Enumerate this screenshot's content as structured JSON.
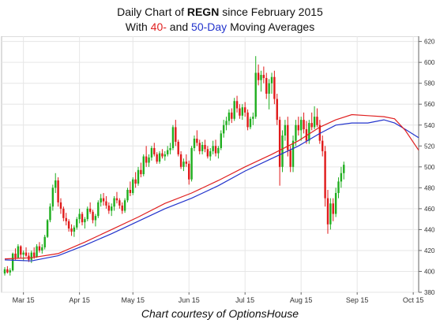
{
  "title": {
    "line1_prefix": "Daily Chart of ",
    "ticker": "REGN",
    "line1_suffix": " since February 2015",
    "line2_prefix": "With ",
    "ma40_label": "40-",
    "line2_mid": " and ",
    "ma50_label": "50-Day",
    "line2_suffix": " Moving Averages"
  },
  "credit": "Chart courtesy of OptionsHouse",
  "colors": {
    "up": "#1fae1f",
    "down": "#e01a1a",
    "ma40": "#e02020",
    "ma50": "#2233cc",
    "grid": "#e6e6e6",
    "background": "#ffffff",
    "axis_text": "#333333"
  },
  "chart_data": {
    "type": "candlestick",
    "ylim": [
      380,
      625
    ],
    "y_ticks": [
      380,
      400,
      420,
      440,
      460,
      480,
      500,
      520,
      540,
      560,
      580,
      600,
      620
    ],
    "x_ticks": [
      {
        "label": "Mar 15",
        "index": 7
      },
      {
        "label": "Apr 15",
        "index": 28
      },
      {
        "label": "May 15",
        "index": 48
      },
      {
        "label": "Jun 15",
        "index": 69
      },
      {
        "label": "Jul 15",
        "index": 90
      },
      {
        "label": "Aug 15",
        "index": 111
      },
      {
        "label": "Sep 15",
        "index": 132
      },
      {
        "label": "Oct 15",
        "index": 153
      }
    ],
    "grid": true,
    "candles": [
      [
        398,
        404,
        396,
        402
      ],
      [
        402,
        405,
        398,
        399
      ],
      [
        399,
        403,
        396,
        401
      ],
      [
        401,
        418,
        400,
        417
      ],
      [
        417,
        422,
        411,
        413
      ],
      [
        413,
        426,
        412,
        424
      ],
      [
        424,
        425,
        413,
        416
      ],
      [
        416,
        420,
        410,
        418
      ],
      [
        418,
        423,
        414,
        415
      ],
      [
        415,
        418,
        409,
        411
      ],
      [
        411,
        420,
        408,
        418
      ],
      [
        418,
        423,
        412,
        414
      ],
      [
        414,
        426,
        413,
        424
      ],
      [
        424,
        428,
        418,
        420
      ],
      [
        420,
        426,
        417,
        423
      ],
      [
        423,
        435,
        421,
        433
      ],
      [
        433,
        450,
        432,
        449
      ],
      [
        449,
        465,
        447,
        462
      ],
      [
        462,
        483,
        458,
        480
      ],
      [
        480,
        494,
        475,
        487
      ],
      [
        487,
        490,
        462,
        466
      ],
      [
        466,
        470,
        455,
        460
      ],
      [
        460,
        462,
        448,
        451
      ],
      [
        451,
        456,
        444,
        448
      ],
      [
        448,
        450,
        438,
        441
      ],
      [
        441,
        445,
        434,
        438
      ],
      [
        438,
        444,
        433,
        442
      ],
      [
        442,
        452,
        440,
        450
      ],
      [
        450,
        460,
        446,
        455
      ],
      [
        455,
        457,
        444,
        447
      ],
      [
        447,
        452,
        441,
        450
      ],
      [
        450,
        462,
        448,
        460
      ],
      [
        460,
        466,
        455,
        457
      ],
      [
        457,
        459,
        446,
        449
      ],
      [
        449,
        455,
        443,
        453
      ],
      [
        453,
        468,
        451,
        466
      ],
      [
        466,
        474,
        462,
        470
      ],
      [
        470,
        475,
        463,
        467
      ],
      [
        467,
        472,
        460,
        463
      ],
      [
        463,
        466,
        455,
        458
      ],
      [
        458,
        465,
        453,
        462
      ],
      [
        462,
        472,
        458,
        470
      ],
      [
        470,
        476,
        465,
        468
      ],
      [
        468,
        470,
        460,
        463
      ],
      [
        463,
        466,
        455,
        458
      ],
      [
        458,
        470,
        456,
        468
      ],
      [
        468,
        480,
        466,
        478
      ],
      [
        478,
        486,
        472,
        475
      ],
      [
        475,
        490,
        473,
        488
      ],
      [
        488,
        495,
        480,
        484
      ],
      [
        484,
        500,
        482,
        497
      ],
      [
        497,
        504,
        490,
        493
      ],
      [
        493,
        512,
        491,
        510
      ],
      [
        510,
        520,
        500,
        504
      ],
      [
        504,
        512,
        500,
        509
      ],
      [
        509,
        520,
        506,
        518
      ],
      [
        518,
        523,
        510,
        512
      ],
      [
        512,
        514,
        503,
        505
      ],
      [
        505,
        515,
        503,
        513
      ],
      [
        513,
        517,
        508,
        510
      ],
      [
        510,
        515,
        506,
        512
      ],
      [
        512,
        520,
        510,
        516
      ],
      [
        516,
        523,
        512,
        518
      ],
      [
        518,
        540,
        516,
        538
      ],
      [
        538,
        545,
        520,
        524
      ],
      [
        524,
        526,
        510,
        512
      ],
      [
        512,
        515,
        498,
        500
      ],
      [
        500,
        508,
        496,
        505
      ],
      [
        505,
        512,
        500,
        503
      ],
      [
        503,
        506,
        483,
        488
      ],
      [
        488,
        520,
        486,
        518
      ],
      [
        518,
        530,
        515,
        527
      ],
      [
        527,
        535,
        520,
        523
      ],
      [
        523,
        526,
        512,
        515
      ],
      [
        515,
        524,
        512,
        521
      ],
      [
        521,
        526,
        514,
        517
      ],
      [
        517,
        520,
        508,
        510
      ],
      [
        510,
        518,
        506,
        515
      ],
      [
        515,
        525,
        512,
        520
      ],
      [
        520,
        526,
        510,
        513
      ],
      [
        513,
        520,
        508,
        518
      ],
      [
        518,
        535,
        516,
        532
      ],
      [
        532,
        545,
        528,
        540
      ],
      [
        540,
        548,
        535,
        544
      ],
      [
        544,
        555,
        540,
        552
      ],
      [
        552,
        556,
        542,
        546
      ],
      [
        546,
        566,
        544,
        563
      ],
      [
        563,
        568,
        552,
        556
      ],
      [
        556,
        560,
        546,
        549
      ],
      [
        549,
        560,
        545,
        557
      ],
      [
        557,
        562,
        548,
        552
      ],
      [
        552,
        555,
        535,
        538
      ],
      [
        538,
        548,
        536,
        546
      ],
      [
        546,
        552,
        540,
        548
      ],
      [
        548,
        606,
        546,
        590
      ],
      [
        590,
        598,
        578,
        583
      ],
      [
        583,
        592,
        572,
        588
      ],
      [
        588,
        596,
        580,
        585
      ],
      [
        585,
        590,
        565,
        570
      ],
      [
        570,
        584,
        555,
        580
      ],
      [
        580,
        590,
        570,
        586
      ],
      [
        586,
        592,
        560,
        565
      ],
      [
        565,
        570,
        540,
        545
      ],
      [
        545,
        548,
        482,
        500
      ],
      [
        500,
        535,
        495,
        530
      ],
      [
        530,
        545,
        525,
        540
      ],
      [
        540,
        548,
        510,
        516
      ],
      [
        516,
        520,
        495,
        500
      ],
      [
        500,
        530,
        495,
        525
      ],
      [
        525,
        545,
        520,
        540
      ],
      [
        540,
        548,
        530,
        535
      ],
      [
        535,
        548,
        525,
        545
      ],
      [
        545,
        552,
        532,
        536
      ],
      [
        536,
        544,
        522,
        525
      ],
      [
        525,
        545,
        522,
        542
      ],
      [
        542,
        552,
        535,
        538
      ],
      [
        538,
        558,
        536,
        548
      ],
      [
        548,
        556,
        538,
        540
      ],
      [
        540,
        545,
        522,
        525
      ],
      [
        525,
        530,
        510,
        515
      ],
      [
        515,
        520,
        462,
        470
      ],
      [
        470,
        478,
        436,
        445
      ],
      [
        445,
        470,
        440,
        465
      ],
      [
        465,
        470,
        448,
        455
      ],
      [
        455,
        480,
        452,
        475
      ],
      [
        475,
        490,
        470,
        486
      ],
      [
        486,
        500,
        480,
        494
      ],
      [
        494,
        505,
        488,
        502
      ]
    ],
    "ma40": [
      [
        0,
        412
      ],
      [
        10,
        413
      ],
      [
        20,
        417
      ],
      [
        30,
        428
      ],
      [
        40,
        440
      ],
      [
        50,
        452
      ],
      [
        60,
        465
      ],
      [
        70,
        475
      ],
      [
        80,
        487
      ],
      [
        90,
        500
      ],
      [
        100,
        512
      ],
      [
        110,
        525
      ],
      [
        118,
        538
      ],
      [
        124,
        545
      ],
      [
        130,
        550
      ],
      [
        136,
        549
      ],
      [
        142,
        548
      ],
      [
        146,
        546
      ],
      [
        150,
        535
      ],
      [
        155,
        516
      ]
    ],
    "ma50": [
      [
        0,
        411
      ],
      [
        10,
        410
      ],
      [
        20,
        415
      ],
      [
        30,
        425
      ],
      [
        40,
        436
      ],
      [
        50,
        448
      ],
      [
        60,
        460
      ],
      [
        70,
        470
      ],
      [
        80,
        482
      ],
      [
        90,
        496
      ],
      [
        100,
        508
      ],
      [
        110,
        520
      ],
      [
        118,
        532
      ],
      [
        124,
        540
      ],
      [
        130,
        542
      ],
      [
        136,
        542
      ],
      [
        142,
        545
      ],
      [
        146,
        542
      ],
      [
        150,
        536
      ],
      [
        155,
        528
      ]
    ]
  }
}
